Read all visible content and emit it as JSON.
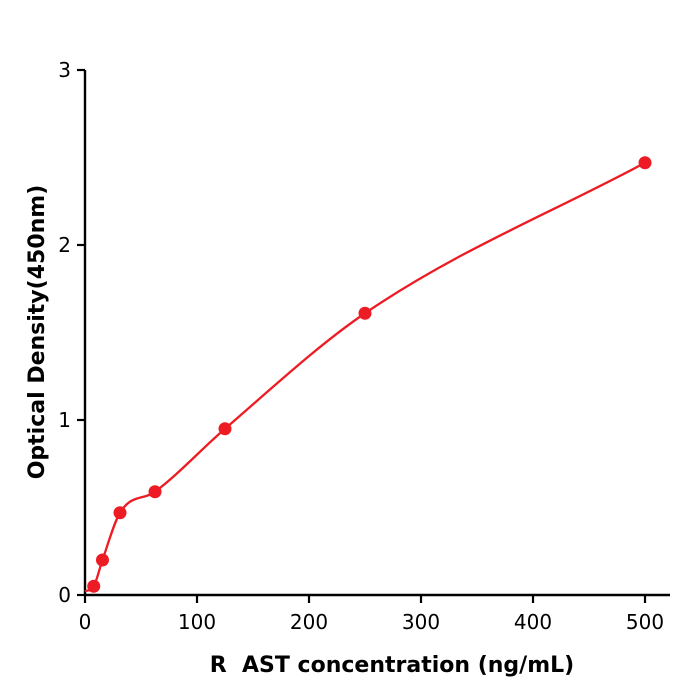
{
  "chart_data": {
    "type": "scatter",
    "title": "",
    "xlabel": "R  AST concentration (ng/mL)",
    "ylabel": "Optical Density(450nm)",
    "x": [
      7.8,
      15.6,
      31.25,
      62.5,
      125,
      250,
      500
    ],
    "y": [
      0.05,
      0.2,
      0.47,
      0.59,
      0.95,
      1.61,
      2.47
    ],
    "curve_start": {
      "x": 0,
      "y": 0.02
    },
    "xlim": [
      0,
      522
    ],
    "ylim": [
      0,
      3
    ],
    "xticks": [
      0,
      100,
      200,
      300,
      400,
      500
    ],
    "yticks": [
      0,
      1,
      2,
      3
    ],
    "point_color": "#ed1c24",
    "line_color": "#ed1c24",
    "axis_color": "#000000",
    "grid": false,
    "legend": "none",
    "curve": "smooth fitted standard curve through data points"
  }
}
